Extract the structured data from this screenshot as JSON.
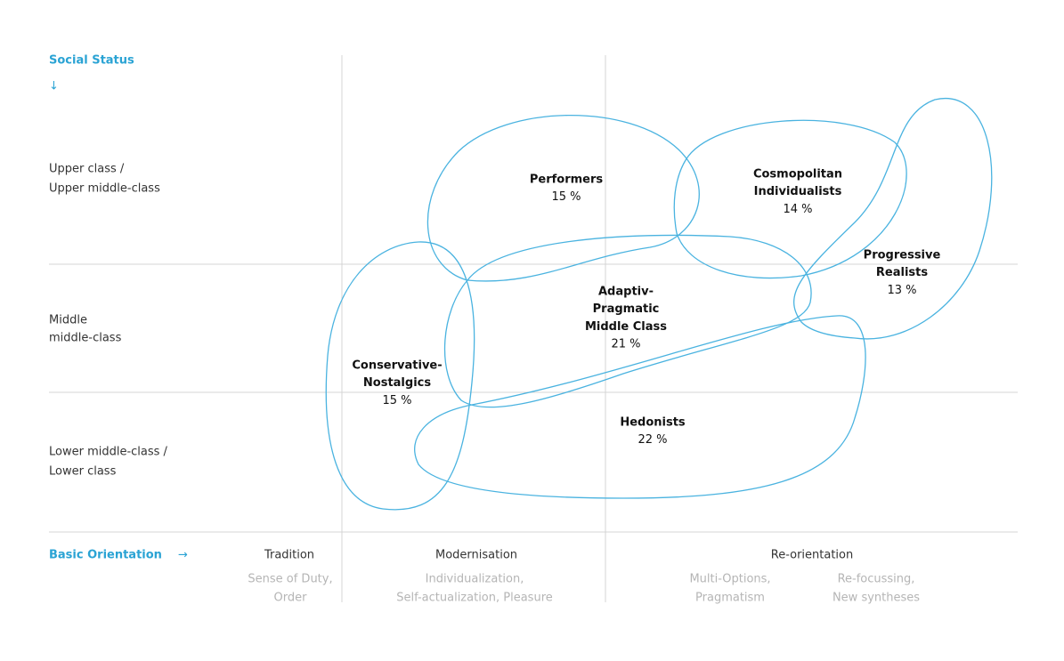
{
  "y_axis": {
    "title": "Social Status",
    "arrow": "↓",
    "rows": [
      [
        "Upper class /",
        "Upper middle-class"
      ],
      [
        "Middle",
        "middle-class"
      ],
      [
        "Lower middle-class /",
        "Lower class"
      ]
    ]
  },
  "x_axis": {
    "title": "Basic Orientation",
    "arrow": "→",
    "columns": [
      {
        "heading": "Tradition",
        "sub": [
          "Sense of Duty,",
          "Order"
        ]
      },
      {
        "heading": "Modernisation",
        "sub": [
          "Individualization,",
          "Self-actualization, Pleasure"
        ]
      },
      {
        "heading": "Re-orientation",
        "subgroups": [
          [
            "Multi-Options,",
            "Pragmatism"
          ],
          [
            "Re-focussing,",
            "New syntheses"
          ]
        ]
      }
    ]
  },
  "milieus": [
    {
      "name": [
        "Performers"
      ],
      "share": "15 %"
    },
    {
      "name": [
        "Cosmopolitan",
        "Individualists"
      ],
      "share": "14 %"
    },
    {
      "name": [
        "Progressive",
        "Realists"
      ],
      "share": "13 %"
    },
    {
      "name": [
        "Adaptiv-",
        "Pragmatic",
        "Middle Class"
      ],
      "share": "21 %"
    },
    {
      "name": [
        "Conservative-",
        "Nostalgics"
      ],
      "share": "15 %"
    },
    {
      "name": [
        "Hedonists"
      ],
      "share": "22 %"
    }
  ]
}
